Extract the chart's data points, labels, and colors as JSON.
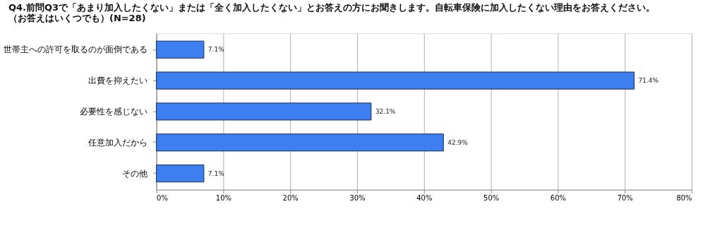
{
  "chart_data": {
    "type": "bar",
    "orientation": "horizontal",
    "title": "Q4.前問Q3で「あまり加入したくない」または「全く加入したくない」とお答えの方にお聞きします。自転車保険に加入したくない理由をお答えください。",
    "subtitle": "（お答えはいくつでも）(N=28)",
    "categories": [
      "世帯主への許可を取るのが面倒である",
      "出費を抑えたい",
      "必要性を感じない",
      "任意加入だから",
      "その他"
    ],
    "values": [
      7.1,
      71.4,
      32.1,
      42.9,
      7.1
    ],
    "value_labels": [
      "7.1%",
      "71.4%",
      "32.1%",
      "42.9%",
      "7.1%"
    ],
    "color": "#3d7ff0",
    "xlim": [
      0,
      80
    ],
    "xticks": [
      {
        "value": 0,
        "label": "0%"
      },
      {
        "value": 10,
        "label": "10%"
      },
      {
        "value": 20,
        "label": "20%"
      },
      {
        "value": 30,
        "label": "30%"
      },
      {
        "value": 40,
        "label": "40%"
      },
      {
        "value": 50,
        "label": "50%"
      },
      {
        "value": 60,
        "label": "60%"
      },
      {
        "value": 70,
        "label": "70%"
      },
      {
        "value": 80,
        "label": "80%"
      }
    ],
    "grid": "x"
  }
}
